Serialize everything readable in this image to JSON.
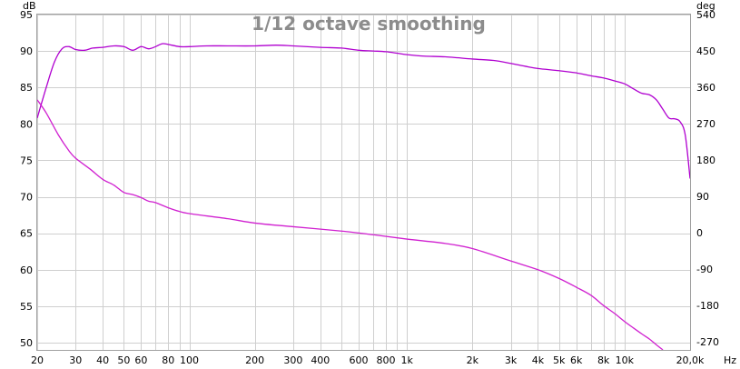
{
  "chart_data": {
    "type": "line",
    "title": "1/12 octave smoothing",
    "x_unit": "Hz",
    "x_scale": "log",
    "xlim": [
      20,
      20000
    ],
    "y_left_unit": "dB",
    "y_left_lim": [
      49,
      95
    ],
    "y_right_unit": "deg",
    "y_right_lim": [
      -290,
      540
    ],
    "grid": true,
    "x_ticks": [
      {
        "v": 20,
        "label": "20"
      },
      {
        "v": 30,
        "label": "30"
      },
      {
        "v": 40,
        "label": "40"
      },
      {
        "v": 50,
        "label": "50"
      },
      {
        "v": 60,
        "label": "60"
      },
      {
        "v": 80,
        "label": "80"
      },
      {
        "v": 100,
        "label": "100"
      },
      {
        "v": 200,
        "label": "200"
      },
      {
        "v": 300,
        "label": "300"
      },
      {
        "v": 400,
        "label": "400"
      },
      {
        "v": 600,
        "label": "600"
      },
      {
        "v": 800,
        "label": "800"
      },
      {
        "v": 1000,
        "label": "1k"
      },
      {
        "v": 2000,
        "label": "2k"
      },
      {
        "v": 3000,
        "label": "3k"
      },
      {
        "v": 4000,
        "label": "4k"
      },
      {
        "v": 5000,
        "label": "5k"
      },
      {
        "v": 6000,
        "label": "6k"
      },
      {
        "v": 8000,
        "label": "8k"
      },
      {
        "v": 10000,
        "label": "10k"
      },
      {
        "v": 20000,
        "label": "20,0k"
      }
    ],
    "y_left_ticks": [
      "95",
      "90",
      "85",
      "80",
      "75",
      "70",
      "65",
      "60",
      "55",
      "50"
    ],
    "y_right_ticks": [
      "540",
      "450",
      "360",
      "270",
      "180",
      "90",
      "0",
      "-90",
      "-180",
      "-270"
    ],
    "series": [
      {
        "axis": "left",
        "color": "#b000d0",
        "x": [
          20,
          22,
          24,
          26,
          28,
          30,
          33,
          36,
          40,
          45,
          50,
          55,
          60,
          65,
          70,
          75,
          80,
          90,
          100,
          120,
          150,
          200,
          250,
          300,
          400,
          500,
          600,
          700,
          800,
          900,
          1000,
          1200,
          1500,
          2000,
          2500,
          3000,
          3500,
          4000,
          5000,
          6000,
          7000,
          8000,
          9000,
          10000,
          11000,
          12000,
          13000,
          14000,
          15000,
          16000,
          17000,
          18000,
          19000,
          20000
        ],
        "y": [
          80.8,
          85,
          88.5,
          90.3,
          90.6,
          90.2,
          90.1,
          90.4,
          90.5,
          90.7,
          90.6,
          90.1,
          90.6,
          90.3,
          90.6,
          91.0,
          90.9,
          90.6,
          90.6,
          90.7,
          90.7,
          90.7,
          90.8,
          90.7,
          90.5,
          90.4,
          90.1,
          90.0,
          89.9,
          89.7,
          89.5,
          89.3,
          89.2,
          88.9,
          88.7,
          88.3,
          87.9,
          87.6,
          87.3,
          87.0,
          86.6,
          86.3,
          85.9,
          85.5,
          84.8,
          84.2,
          84.0,
          83.3,
          82.0,
          80.8,
          80.7,
          80.3,
          78.5,
          72.5
        ]
      },
      {
        "axis": "left",
        "color": "#d020d0",
        "x": [
          20,
          22,
          25,
          28,
          30,
          35,
          40,
          45,
          50,
          55,
          60,
          65,
          70,
          80,
          90,
          100,
          150,
          200,
          300,
          500,
          700,
          1000,
          1500,
          2000,
          3000,
          4000,
          5000,
          6000,
          7000,
          8000,
          9000,
          10000,
          11000,
          12000,
          13000,
          14000,
          15000
        ],
        "y": [
          83.3,
          81.5,
          78.5,
          76.3,
          75.3,
          73.8,
          72.4,
          71.6,
          70.6,
          70.3,
          69.9,
          69.4,
          69.2,
          68.5,
          68.0,
          67.7,
          67.0,
          66.4,
          65.9,
          65.3,
          64.8,
          64.2,
          63.6,
          62.9,
          61.2,
          60.0,
          58.8,
          57.6,
          56.5,
          55.1,
          54.0,
          52.9,
          52.0,
          51.2,
          50.5,
          49.7,
          49.0
        ]
      }
    ]
  }
}
